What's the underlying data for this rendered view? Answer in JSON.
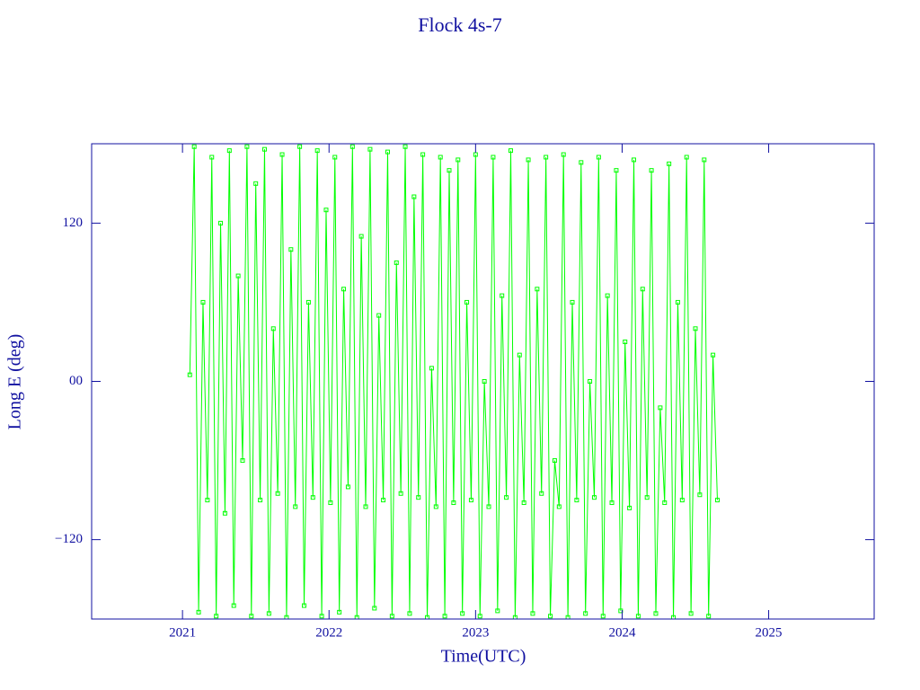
{
  "chart_data": {
    "type": "line",
    "title": "Flock 4s-7",
    "x_label": "Time(UTC)",
    "y_label": "Long E (deg)",
    "xlim": [
      2020.38,
      2025.72
    ],
    "xticks": [
      2021,
      2022,
      2023,
      2024,
      2025
    ],
    "ylim": [
      -180.2,
      180.2
    ],
    "yticks": [
      {
        "value": -120,
        "label": "−120"
      },
      {
        "value": 0,
        "label": "00"
      },
      120
    ],
    "axis_color": "#1010a0",
    "x": [
      2021.05,
      2021.08,
      2021.11,
      2021.14,
      2021.17,
      2021.2,
      2021.23,
      2021.26,
      2021.29,
      2021.32,
      2021.35,
      2021.38,
      2021.41,
      2021.44,
      2021.47,
      2021.5,
      2021.53,
      2021.56,
      2021.59,
      2021.62,
      2021.65,
      2021.68,
      2021.71,
      2021.74,
      2021.77,
      2021.8,
      2021.83,
      2021.86,
      2021.89,
      2021.92,
      2021.95,
      2021.98,
      2022.01,
      2022.04,
      2022.07,
      2022.1,
      2022.13,
      2022.16,
      2022.19,
      2022.22,
      2022.25,
      2022.28,
      2022.31,
      2022.34,
      2022.37,
      2022.4,
      2022.43,
      2022.46,
      2022.49,
      2022.52,
      2022.55,
      2022.58,
      2022.61,
      2022.64,
      2022.67,
      2022.7,
      2022.73,
      2022.76,
      2022.79,
      2022.82,
      2022.85,
      2022.88,
      2022.91,
      2022.94,
      2022.97,
      2023.0,
      2023.03,
      2023.06,
      2023.09,
      2023.12,
      2023.15,
      2023.18,
      2023.21,
      2023.24,
      2023.27,
      2023.3,
      2023.33,
      2023.36,
      2023.39,
      2023.42,
      2023.45,
      2023.48,
      2023.51,
      2023.54,
      2023.57,
      2023.6,
      2023.63,
      2023.66,
      2023.69,
      2023.72,
      2023.75,
      2023.78,
      2023.81,
      2023.84,
      2023.87,
      2023.9,
      2023.93,
      2023.96,
      2023.99,
      2024.02,
      2024.05,
      2024.08,
      2024.11,
      2024.14,
      2024.17,
      2024.2,
      2024.23,
      2024.26,
      2024.29,
      2024.32,
      2024.35,
      2024.38,
      2024.41,
      2024.44,
      2024.47,
      2024.5,
      2024.53,
      2024.56,
      2024.59,
      2024.62,
      2024.65
    ],
    "series": [
      {
        "color": "#00ff00",
        "values": [
          5,
          178,
          -175,
          60,
          -90,
          170,
          -178,
          120,
          -100,
          175,
          -170,
          80,
          -60,
          178,
          -178,
          150,
          -90,
          176,
          -176,
          40,
          -85,
          172,
          -179,
          100,
          -95,
          178,
          -170,
          60,
          -88,
          175,
          -178,
          130,
          -92,
          170,
          -175,
          70,
          -80,
          178,
          -179,
          110,
          -95,
          176,
          -172,
          50,
          -90,
          174,
          -178,
          90,
          -85,
          178,
          -176,
          140,
          -88,
          172,
          -179,
          10,
          -95,
          170,
          -178,
          160,
          -92,
          168,
          -176,
          60,
          -90,
          172,
          -178,
          0,
          -95,
          170,
          -174,
          65,
          -88,
          175,
          -179,
          20,
          -92,
          168,
          -176,
          70,
          -85,
          170,
          -178,
          -60,
          -95,
          172,
          -179,
          60,
          -90,
          166,
          -176,
          0,
          -88,
          170,
          -178,
          65,
          -92,
          160,
          -174,
          30,
          -96,
          168,
          -178,
          70,
          -88,
          160,
          -176,
          -20,
          -92,
          165,
          -179,
          60,
          -90,
          170,
          -176,
          40,
          -86,
          168,
          -178,
          20,
          -90
        ]
      }
    ]
  }
}
